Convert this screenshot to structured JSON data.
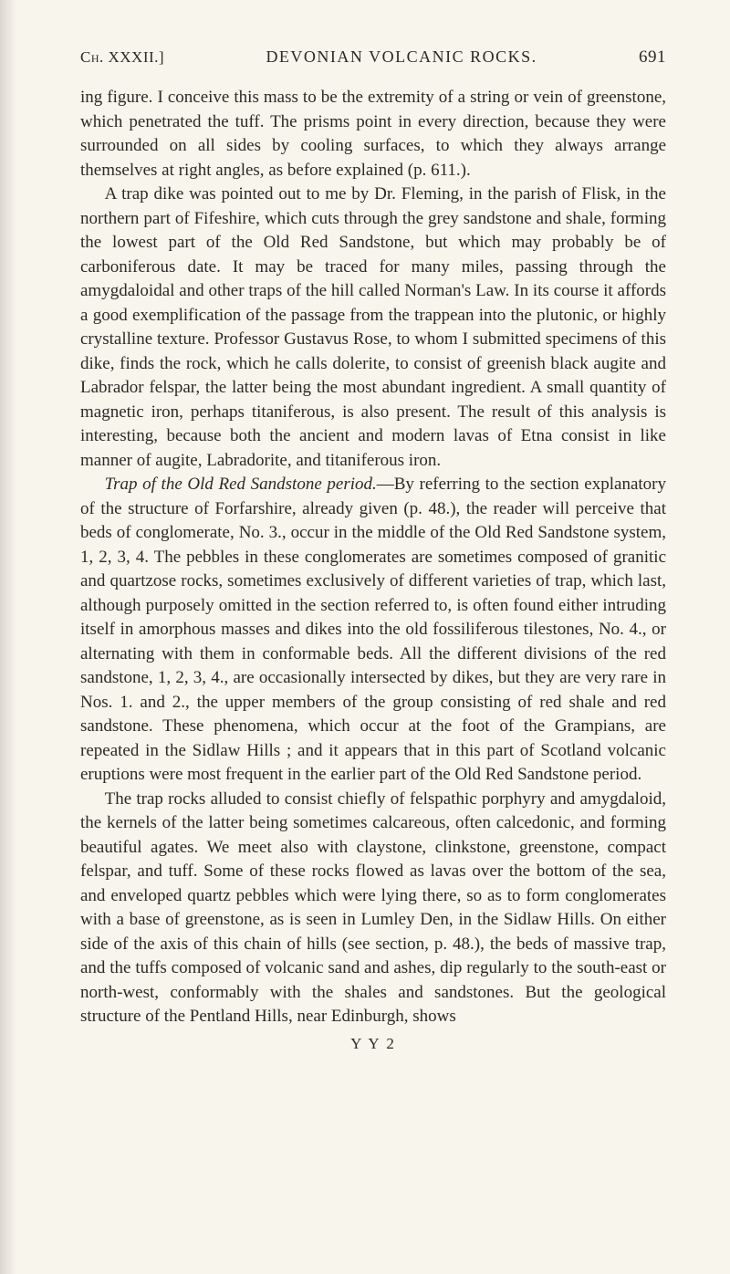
{
  "colors": {
    "page_bg": "#f8f5ec",
    "text": "#2a2a26"
  },
  "typography": {
    "body_fontsize_pt": 14,
    "line_height": 1.39,
    "font_family": "Georgia, 'Times New Roman', serif"
  },
  "header": {
    "left": "Ch. XXXII.]",
    "center": "DEVONIAN VOLCANIC ROCKS.",
    "page_number": "691"
  },
  "paragraphs": {
    "p1": "ing figure. I conceive this mass to be the extremity of a string or vein of greenstone, which penetrated the tuff. The prisms point in every direction, because they were surrounded on all sides by cooling surfaces, to which they always arrange themselves at right angles, as before explained (p. 611.).",
    "p2": "A trap dike was pointed out to me by Dr. Fleming, in the parish of Flisk, in the northern part of Fifeshire, which cuts through the grey sandstone and shale, forming the lowest part of the Old Red Sandstone, but which may probably be of carboniferous date. It may be traced for many miles, passing through the amygdaloidal and other traps of the hill called Norman's Law. In its course it affords a good exemplification of the passage from the trappean into the plutonic, or highly crystalline texture. Professor Gustavus Rose, to whom I submitted specimens of this dike, finds the rock, which he calls dolerite, to consist of greenish black augite and Labrador felspar, the latter being the most abundant ingredient. A small quantity of magnetic iron, perhaps titaniferous, is also present. The result of this analysis is interesting, because both the ancient and modern lavas of Etna consist in like manner of augite, Labradorite, and titaniferous iron.",
    "p3_lead_italic": "Trap of the Old Red Sandstone period.",
    "p3_rest": "—By referring to the section explanatory of the structure of Forfarshire, already given (p. 48.), the reader will perceive that beds of conglomerate, No. 3., occur in the middle of the Old Red Sandstone system, 1, 2, 3, 4. The pebbles in these conglomerates are sometimes composed of granitic and quartzose rocks, sometimes exclusively of different varieties of trap, which last, although purposely omitted in the section referred to, is often found either intruding itself in amorphous masses and dikes into the old fossiliferous tilestones, No. 4., or alternating with them in conformable beds. All the different divisions of the red sandstone, 1, 2, 3, 4., are occasionally intersected by dikes, but they are very rare in Nos. 1. and 2., the upper members of the group consisting of red shale and red sandstone. These phenomena, which occur at the foot of the Grampians, are repeated in the Sidlaw Hills ; and it appears that in this part of Scotland volcanic eruptions were most frequent in the earlier part of the Old Red Sandstone period.",
    "p4": "The trap rocks alluded to consist chiefly of felspathic porphyry and amygdaloid, the kernels of the latter being sometimes calcareous, often calcedonic, and forming beautiful agates. We meet also with claystone, clinkstone, greenstone, compact felspar, and tuff. Some of these rocks flowed as lavas over the bottom of the sea, and enveloped quartz pebbles which were lying there, so as to form conglomerates with a base of greenstone, as is seen in Lumley Den, in the Sidlaw Hills. On either side of the axis of this chain of hills (see section, p. 48.), the beds of massive trap, and the tuffs composed of volcanic sand and ashes, dip regularly to the south-east or north-west, conformably with the shales and sandstones. But the geological structure of the Pentland Hills, near Edinburgh, shows"
  },
  "signature": "Y Y 2"
}
